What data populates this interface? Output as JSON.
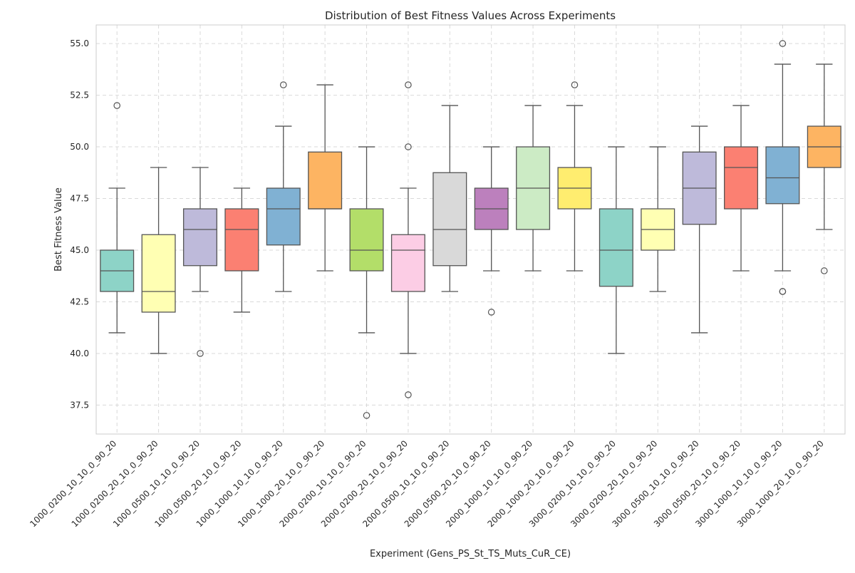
{
  "chart_data": {
    "type": "box",
    "title": "Distribution of Best Fitness Values Across Experiments",
    "xlabel": "Experiment (Gens_PS_St_TS_Muts_CuR_CE)",
    "ylabel": "Best Fitness Value",
    "ylim": [
      36.1,
      55.9
    ],
    "yticks": [
      37.5,
      40.0,
      42.5,
      45.0,
      47.5,
      50.0,
      52.5,
      55.0
    ],
    "ytick_labels": [
      "37.5",
      "40.0",
      "42.5",
      "45.0",
      "47.5",
      "50.0",
      "52.5",
      "55.0"
    ],
    "grid": true,
    "categories": [
      "1000_0200_10_10_0_90_20",
      "1000_0200_20_10_0_90_20",
      "1000_0500_10_10_0_90_20",
      "1000_0500_20_10_0_90_20",
      "1000_1000_10_10_0_90_20",
      "1000_1000_20_10_0_90_20",
      "2000_0200_10_10_0_90_20",
      "2000_0200_20_10_0_90_20",
      "2000_0500_10_10_0_90_20",
      "2000_0500_20_10_0_90_20",
      "2000_1000_10_10_0_90_20",
      "2000_1000_20_10_0_90_20",
      "3000_0200_10_10_0_90_20",
      "3000_0200_20_10_0_90_20",
      "3000_0500_10_10_0_90_20",
      "3000_0500_20_10_0_90_20",
      "3000_1000_10_10_0_90_20",
      "3000_1000_20_10_0_90_20"
    ],
    "boxes": [
      {
        "whisker_low": 41,
        "q1": 43,
        "median": 44,
        "q3": 45,
        "whisker_high": 48,
        "outliers": [
          52
        ],
        "color": "#8dd3c7"
      },
      {
        "whisker_low": 40,
        "q1": 42,
        "median": 43,
        "q3": 45.75,
        "whisker_high": 49,
        "outliers": [],
        "color": "#ffffb3"
      },
      {
        "whisker_low": 43,
        "q1": 44.25,
        "median": 46,
        "q3": 47,
        "whisker_high": 49,
        "outliers": [
          40
        ],
        "color": "#bebada"
      },
      {
        "whisker_low": 42,
        "q1": 44,
        "median": 46,
        "q3": 47,
        "whisker_high": 48,
        "outliers": [],
        "color": "#fb8072"
      },
      {
        "whisker_low": 43,
        "q1": 45.25,
        "median": 47,
        "q3": 48,
        "whisker_high": 51,
        "outliers": [
          53
        ],
        "color": "#80b1d3"
      },
      {
        "whisker_low": 44,
        "q1": 47,
        "median": 47,
        "q3": 49.75,
        "whisker_high": 53,
        "outliers": [],
        "color": "#fdb462"
      },
      {
        "whisker_low": 41,
        "q1": 44,
        "median": 45,
        "q3": 47,
        "whisker_high": 50,
        "outliers": [
          37
        ],
        "color": "#b3de69"
      },
      {
        "whisker_low": 40,
        "q1": 43,
        "median": 45,
        "q3": 45.75,
        "whisker_high": 48,
        "outliers": [
          38,
          50,
          53
        ],
        "color": "#fccde5"
      },
      {
        "whisker_low": 43,
        "q1": 44.25,
        "median": 46,
        "q3": 48.75,
        "whisker_high": 52,
        "outliers": [],
        "color": "#d9d9d9"
      },
      {
        "whisker_low": 44,
        "q1": 46,
        "median": 47,
        "q3": 48,
        "whisker_high": 50,
        "outliers": [
          42
        ],
        "color": "#bc80bd"
      },
      {
        "whisker_low": 44,
        "q1": 46,
        "median": 48,
        "q3": 50,
        "whisker_high": 52,
        "outliers": [],
        "color": "#ccebc5"
      },
      {
        "whisker_low": 44,
        "q1": 47,
        "median": 48,
        "q3": 49,
        "whisker_high": 52,
        "outliers": [
          53
        ],
        "color": "#ffed6f"
      },
      {
        "whisker_low": 40,
        "q1": 43.25,
        "median": 45,
        "q3": 47,
        "whisker_high": 50,
        "outliers": [],
        "color": "#8dd3c7"
      },
      {
        "whisker_low": 43,
        "q1": 45,
        "median": 46,
        "q3": 47,
        "whisker_high": 50,
        "outliers": [],
        "color": "#ffffb3"
      },
      {
        "whisker_low": 41,
        "q1": 46.25,
        "median": 48,
        "q3": 49.75,
        "whisker_high": 51,
        "outliers": [],
        "color": "#bebada"
      },
      {
        "whisker_low": 44,
        "q1": 47,
        "median": 49,
        "q3": 50,
        "whisker_high": 52,
        "outliers": [],
        "color": "#fb8072"
      },
      {
        "whisker_low": 44,
        "q1": 47.25,
        "median": 48.5,
        "q3": 50,
        "whisker_high": 54,
        "outliers": [
          43,
          43,
          55
        ],
        "color": "#80b1d3"
      },
      {
        "whisker_low": 46,
        "q1": 49,
        "median": 50,
        "q3": 51,
        "whisker_high": 54,
        "outliers": [
          44
        ],
        "color": "#fdb462"
      }
    ]
  }
}
